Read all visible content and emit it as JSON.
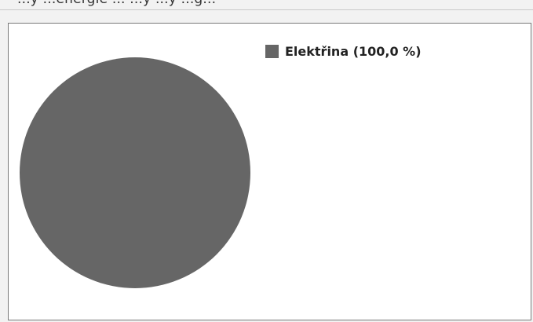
{
  "header": {
    "partial_text": "...ý ...energie ... ...ý ...ý ...g..."
  },
  "chart_data": {
    "type": "pie",
    "categories": [
      "Elektřina"
    ],
    "values": [
      100.0
    ],
    "legend": [
      {
        "label": "Elektřina (100,0 %)",
        "color": "#666666"
      }
    ],
    "legend_position": "top-right",
    "colors": [
      "#666666"
    ]
  }
}
